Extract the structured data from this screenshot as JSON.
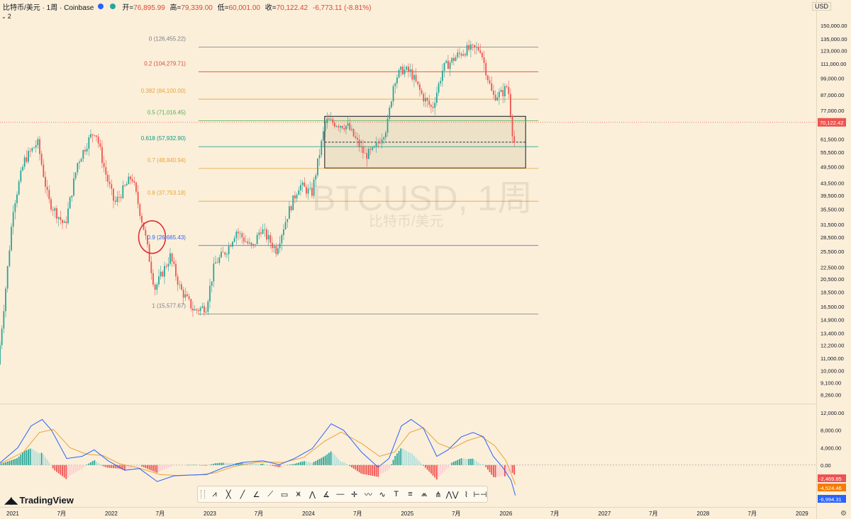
{
  "header": {
    "symbol_title": "比特币/美元 · 1周 · Coinbase",
    "open_label": "开=",
    "open_value": "76,895.99",
    "high_label": "高=",
    "high_value": "79,339.00",
    "low_label": "低=",
    "low_value": "60,001.00",
    "close_label": "收=",
    "close_value": "70,122.42",
    "change_value": "-6,773.11 (-8.81%)",
    "currency": "USD",
    "indicator_count": "2"
  },
  "watermark": {
    "main": "BTCUSD, 1周",
    "sub": "比特币/美元"
  },
  "logo": {
    "text": "TradingView"
  },
  "toolbar": {
    "icons": [
      "abcd-pattern-icon",
      "cross-line-icon",
      "trend-line-icon",
      "trend-angle-icon",
      "fib-extension-icon",
      "rectangle-icon",
      "xabcd-pattern-icon",
      "abcd-icon",
      "angle-icon",
      "horizontal-ray-icon",
      "crosshair-icon",
      "elliott-wave-icon",
      "curve-icon",
      "text-icon",
      "parallel-channel-icon",
      "head-shoulders-icon",
      "elliott-triangle-icon",
      "three-drives-icon",
      "polyline-icon",
      "date-range-icon"
    ]
  },
  "colors": {
    "background": "#fbefd9",
    "up": "#26a69a",
    "down": "#ef5350",
    "fib_0": "#787b86",
    "fib_0236": "#e0453a",
    "fib_0382": "#e8a33a",
    "fib_05": "#4caf50",
    "fib_0618": "#089981",
    "fib_07": "#e8a33a",
    "fib_08": "#e8a33a",
    "fib_09": "#2962ff",
    "fib_1": "#787b86",
    "macd_line": "#2962ff",
    "signal_line": "#e8a33a"
  },
  "chart_data": {
    "type": "candlestick",
    "scale": "log",
    "ylim": [
      7800,
      155000
    ],
    "xlim": [
      "2020-11-15",
      "2029-02-15"
    ],
    "price_ticks": [
      "150,000.00",
      "135,000.00",
      "123,000.00",
      "111,000.00",
      "99,000.00",
      "87,000.00",
      "77,000.00",
      "61,500.00",
      "55,500.00",
      "49,500.00",
      "43,500.00",
      "39,500.00",
      "35,500.00",
      "31,500.00",
      "28,500.00",
      "25,500.00",
      "22,500.00",
      "20,500.00",
      "18,500.00",
      "16,500.00",
      "14,900.00",
      "13,400.00",
      "12,200.00",
      "11,000.00",
      "10,000.00",
      "9,100.00",
      "8,260.00"
    ],
    "price_tick_values": [
      150000,
      135000,
      123000,
      111000,
      99000,
      87000,
      77000,
      61500,
      55500,
      49500,
      43500,
      39500,
      35500,
      31500,
      28500,
      25500,
      22500,
      20500,
      18500,
      16500,
      14900,
      13400,
      12200,
      11000,
      10000,
      9100,
      8260
    ],
    "current_price": {
      "value": 70122.42,
      "label": "70,122.42"
    },
    "time_ticks": [
      {
        "label": "2021",
        "date": "2021-01-01"
      },
      {
        "label": "7月",
        "date": "2021-07-01"
      },
      {
        "label": "2022",
        "date": "2022-01-01"
      },
      {
        "label": "7月",
        "date": "2022-07-01"
      },
      {
        "label": "2023",
        "date": "2023-01-01"
      },
      {
        "label": "7月",
        "date": "2023-07-01"
      },
      {
        "label": "2024",
        "date": "2024-01-01"
      },
      {
        "label": "7月",
        "date": "2024-07-01"
      },
      {
        "label": "2025",
        "date": "2025-01-01"
      },
      {
        "label": "7月",
        "date": "2025-07-01"
      },
      {
        "label": "2026",
        "date": "2026-01-01"
      },
      {
        "label": "7月",
        "date": "2026-07-01"
      },
      {
        "label": "2027",
        "date": "2027-01-01"
      },
      {
        "label": "7月",
        "date": "2027-07-01"
      },
      {
        "label": "2028",
        "date": "2028-01-01"
      },
      {
        "label": "7月",
        "date": "2028-07-01"
      },
      {
        "label": "2029",
        "date": "2029-01-01"
      }
    ],
    "fib_levels": [
      {
        "label": "0 (126,455.22)",
        "value": 126455.22,
        "color_key": "fib_0"
      },
      {
        "label": "0.2 (104,279.71)",
        "value": 104279.71,
        "color_key": "fib_0236"
      },
      {
        "label": "0.382 (84,100.00)",
        "value": 84100.0,
        "color_key": "fib_0382"
      },
      {
        "label": "0.5 (71,016.45)",
        "value": 71016.45,
        "color_key": "fib_05"
      },
      {
        "label": "0.618 (57,932.90)",
        "value": 57932.9,
        "color_key": "fib_0618"
      },
      {
        "label": "0.7 (48,840.94)",
        "value": 48840.94,
        "color_key": "fib_07"
      },
      {
        "label": "0.8 (37,753.18)",
        "value": 37753.18,
        "color_key": "fib_08"
      },
      {
        "label": "0.9 (26,665.43)",
        "value": 26665.43,
        "color_key": "fib_09"
      },
      {
        "label": "1 (15,577.67)",
        "value": 15577.67,
        "color_key": "fib_1"
      }
    ],
    "fib_start_date": "2022-11-20",
    "fib_end_date": "2026-05-01",
    "zone": {
      "start_date": "2024-03-01",
      "end_date": "2026-03-15",
      "top": 73500,
      "bottom": 49000,
      "mid": 60000
    },
    "circle_annotation": {
      "date": "2022-06-01",
      "price": 28500
    },
    "price_path": [
      [
        "2020-11-15",
        10500
      ],
      [
        "2020-12-15",
        20000
      ],
      [
        "2021-01-10",
        36000
      ],
      [
        "2021-02-20",
        52000
      ],
      [
        "2021-04-10",
        60000
      ],
      [
        "2021-05-20",
        38000
      ],
      [
        "2021-07-20",
        31000
      ],
      [
        "2021-09-05",
        51000
      ],
      [
        "2021-10-20",
        62000
      ],
      [
        "2021-11-10",
        66000
      ],
      [
        "2021-12-15",
        48000
      ],
      [
        "2022-01-20",
        37000
      ],
      [
        "2022-03-25",
        46000
      ],
      [
        "2022-05-10",
        30000
      ],
      [
        "2022-06-18",
        19000
      ],
      [
        "2022-08-14",
        24500
      ],
      [
        "2022-09-20",
        19000
      ],
      [
        "2022-11-10",
        16000
      ],
      [
        "2022-12-25",
        16500
      ],
      [
        "2023-01-25",
        23000
      ],
      [
        "2023-03-15",
        26000
      ],
      [
        "2023-04-15",
        30000
      ],
      [
        "2023-06-15",
        26000
      ],
      [
        "2023-07-15",
        30500
      ],
      [
        "2023-09-10",
        25800
      ],
      [
        "2023-10-25",
        34500
      ],
      [
        "2023-12-05",
        43000
      ],
      [
        "2024-01-20",
        40000
      ],
      [
        "2024-03-12",
        71000
      ],
      [
        "2024-06-01",
        68000
      ],
      [
        "2024-08-05",
        54000
      ],
      [
        "2024-09-05",
        56000
      ],
      [
        "2024-10-25",
        68000
      ],
      [
        "2024-11-20",
        98000
      ],
      [
        "2024-12-20",
        106000
      ],
      [
        "2025-01-20",
        104000
      ],
      [
        "2025-03-05",
        86000
      ],
      [
        "2025-04-10",
        78000
      ],
      [
        "2025-05-20",
        107000
      ],
      [
        "2025-07-15",
        119000
      ],
      [
        "2025-08-15",
        124000
      ],
      [
        "2025-10-05",
        125000
      ],
      [
        "2025-11-20",
        86000
      ],
      [
        "2025-12-25",
        88000
      ],
      [
        "2026-01-15",
        94000
      ],
      [
        "2026-02-05",
        60001
      ]
    ],
    "macd": {
      "ylim": [
        -9000,
        13500
      ],
      "ticks": [
        "12,000.00",
        "8,000.00",
        "4,000.00",
        "0.00"
      ],
      "tick_values": [
        12000,
        8000,
        4000,
        0
      ],
      "histogram_value": {
        "value": -2469.85,
        "label": "-2,469.85"
      },
      "signal_value": {
        "value": -4524.46,
        "label": "-4,524.46"
      },
      "macd_value": {
        "value": -6994.31,
        "label": "-6,994.31"
      },
      "macd_path": [
        [
          "2020-11-15",
          500
        ],
        [
          "2021-01-20",
          4000
        ],
        [
          "2021-03-10",
          9000
        ],
        [
          "2021-04-20",
          10500
        ],
        [
          "2021-05-25",
          8000
        ],
        [
          "2021-07-20",
          1500
        ],
        [
          "2021-09-15",
          2000
        ],
        [
          "2021-10-30",
          3500
        ],
        [
          "2021-12-20",
          1000
        ],
        [
          "2022-02-20",
          -1200
        ],
        [
          "2022-04-15",
          -800
        ],
        [
          "2022-06-20",
          -3800
        ],
        [
          "2022-08-20",
          -2500
        ],
        [
          "2022-10-20",
          -2300
        ],
        [
          "2022-12-20",
          -2200
        ],
        [
          "2023-02-20",
          -600
        ],
        [
          "2023-05-01",
          600
        ],
        [
          "2023-07-15",
          1000
        ],
        [
          "2023-09-15",
          100
        ],
        [
          "2023-11-10",
          1500
        ],
        [
          "2024-01-15",
          3800
        ],
        [
          "2024-03-25",
          9500
        ],
        [
          "2024-05-10",
          8000
        ],
        [
          "2024-07-15",
          3000
        ],
        [
          "2024-09-15",
          -500
        ],
        [
          "2024-10-25",
          1500
        ],
        [
          "2024-12-10",
          9000
        ],
        [
          "2025-01-15",
          10500
        ],
        [
          "2025-03-01",
          8500
        ],
        [
          "2025-04-20",
          2000
        ],
        [
          "2025-06-01",
          3500
        ],
        [
          "2025-07-20",
          6500
        ],
        [
          "2025-09-01",
          7500
        ],
        [
          "2025-10-10",
          6500
        ],
        [
          "2025-11-15",
          2000
        ],
        [
          "2025-12-20",
          -500
        ],
        [
          "2026-01-20",
          -3500
        ],
        [
          "2026-02-05",
          -6994
        ]
      ],
      "signal_path": [
        [
          "2020-11-15",
          300
        ],
        [
          "2021-02-10",
          3000
        ],
        [
          "2021-04-10",
          7500
        ],
        [
          "2021-06-01",
          8200
        ],
        [
          "2021-08-01",
          4000
        ],
        [
          "2021-10-01",
          2500
        ],
        [
          "2021-12-01",
          2200
        ],
        [
          "2022-02-01",
          300
        ],
        [
          "2022-04-15",
          -700
        ],
        [
          "2022-07-01",
          -2200
        ],
        [
          "2022-09-01",
          -2400
        ],
        [
          "2022-11-15",
          -2300
        ],
        [
          "2023-01-20",
          -1800
        ],
        [
          "2023-04-01",
          -300
        ],
        [
          "2023-07-01",
          700
        ],
        [
          "2023-10-01",
          600
        ],
        [
          "2023-12-15",
          1800
        ],
        [
          "2024-03-01",
          5500
        ],
        [
          "2024-05-01",
          7600
        ],
        [
          "2024-07-15",
          5000
        ],
        [
          "2024-09-20",
          2000
        ],
        [
          "2024-11-15",
          3000
        ],
        [
          "2025-01-10",
          7500
        ],
        [
          "2025-03-01",
          8600
        ],
        [
          "2025-04-25",
          5000
        ],
        [
          "2025-06-15",
          3800
        ],
        [
          "2025-08-10",
          5600
        ],
        [
          "2025-10-01",
          6600
        ],
        [
          "2025-11-20",
          4500
        ],
        [
          "2026-01-01",
          1000
        ],
        [
          "2026-02-05",
          -4524
        ]
      ]
    }
  }
}
